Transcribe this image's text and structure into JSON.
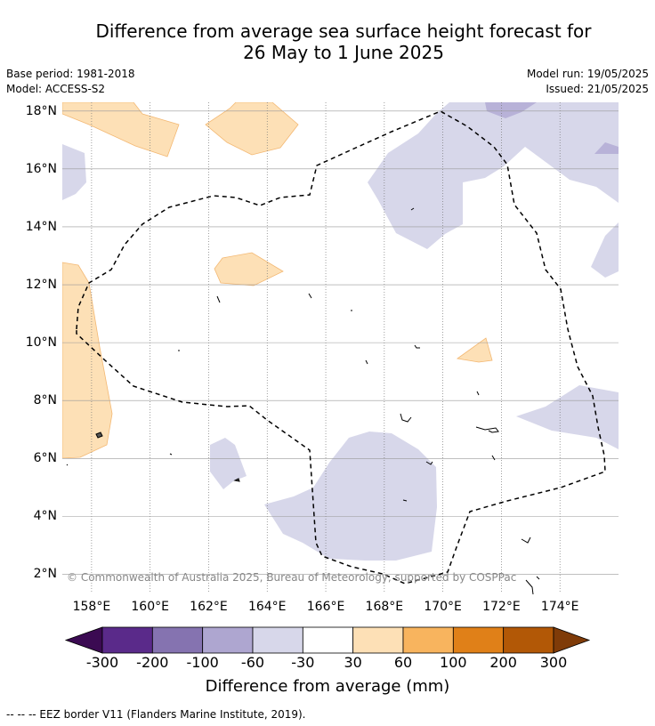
{
  "title": {
    "line1": "Difference from average sea surface height forecast for",
    "line2": "26 May to 1 June 2025"
  },
  "meta": {
    "base_period": "Base period: 1981-2018",
    "model": "Model: ACCESS-S2",
    "model_run": "Model run: 19/05/2025",
    "issued": "Issued: 21/05/2025"
  },
  "map": {
    "lat_labels": [
      "18°N",
      "16°N",
      "14°N",
      "12°N",
      "10°N",
      "8°N",
      "6°N",
      "4°N",
      "2°N"
    ],
    "lat_values": [
      18,
      16,
      14,
      12,
      10,
      8,
      6,
      4,
      2
    ],
    "lon_labels": [
      "158°E",
      "160°E",
      "162°E",
      "164°E",
      "166°E",
      "168°E",
      "170°E",
      "172°E",
      "174°E"
    ],
    "lon_values": [
      158,
      160,
      162,
      164,
      166,
      168,
      170,
      172,
      174
    ],
    "lon_range": [
      157,
      176
    ],
    "lat_range": [
      1.4,
      18.3
    ],
    "gridlines": true,
    "copyright": "© Commonwealth of Australia 2025, Bureau of Meteorology, supported by COSPPac"
  },
  "colorbar": {
    "ticks": [
      "-300",
      "-200",
      "-100",
      "-60",
      "-30",
      "30",
      "60",
      "100",
      "200",
      "300"
    ],
    "colors": [
      "#3b0a52",
      "#5a2a8a",
      "#8573b0",
      "#aea6d0",
      "#d7d7ea",
      "#ffffff",
      "#fde0b6",
      "#f8b45e",
      "#e08018",
      "#b25806",
      "#7f3b08"
    ],
    "label": "Difference from average (mm)"
  },
  "legend": {
    "eez": "--  --  -- EEZ border V11 (Flanders Marine Institute, 2019)."
  }
}
